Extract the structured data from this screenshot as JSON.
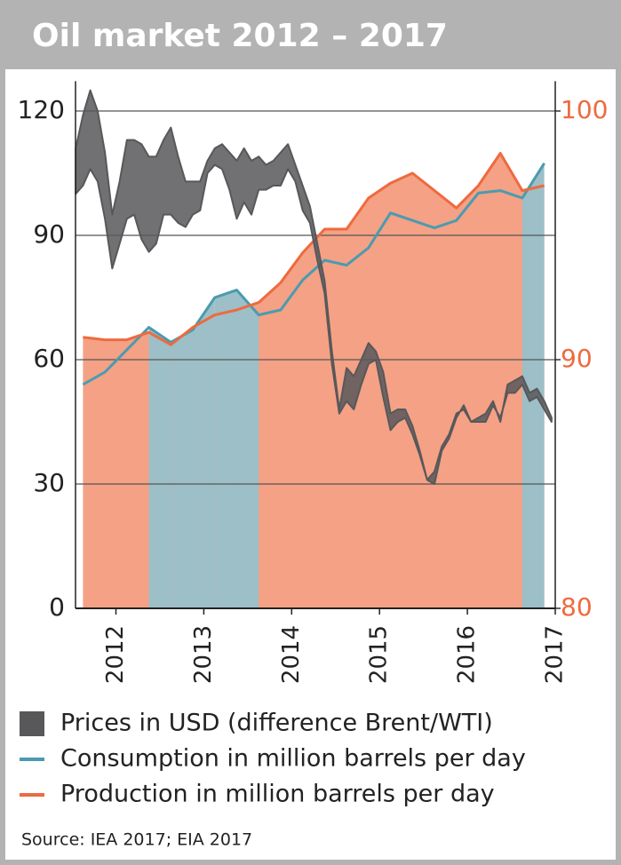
{
  "chart_data": {
    "type": "line",
    "title": "Oil market 2012 – 2017",
    "source": "Source: IEA 2017; EIA 2017",
    "xlim": [
      2012.04,
      2017.5
    ],
    "xticks": [
      {
        "value": 2012.5,
        "label": "2012"
      },
      {
        "value": 2013.5,
        "label": "2013"
      },
      {
        "value": 2014.5,
        "label": "2014"
      },
      {
        "value": 2015.5,
        "label": "2015"
      },
      {
        "value": 2016.5,
        "label": "2016"
      },
      {
        "value": 2017.5,
        "label": "2017"
      }
    ],
    "ylim": [
      0,
      127.2
    ],
    "yticks": [
      0,
      30,
      60,
      90,
      120
    ],
    "y2lim": [
      80,
      101.2
    ],
    "y2ticks": [
      80,
      90,
      100
    ],
    "y2color": "#ee6a3f",
    "grid": true,
    "series": [
      {
        "name": "Prices in USD (difference Brent/WTI)",
        "color": "#58585a",
        "x": [
          2012.042,
          2012.125,
          2012.208,
          2012.292,
          2012.375,
          2012.458,
          2012.542,
          2012.625,
          2012.708,
          2012.792,
          2012.875,
          2012.958,
          2013.042,
          2013.125,
          2013.208,
          2013.292,
          2013.375,
          2013.458,
          2013.542,
          2013.625,
          2013.708,
          2013.792,
          2013.875,
          2013.958,
          2014.042,
          2014.125,
          2014.208,
          2014.292,
          2014.375,
          2014.458,
          2014.542,
          2014.625,
          2014.708,
          2014.792,
          2014.875,
          2014.958,
          2015.042,
          2015.125,
          2015.208,
          2015.292,
          2015.375,
          2015.458,
          2015.542,
          2015.625,
          2015.708,
          2015.792,
          2015.875,
          2015.958,
          2016.042,
          2016.125,
          2016.208,
          2016.292,
          2016.375,
          2016.458,
          2016.542,
          2016.625,
          2016.708,
          2016.792,
          2016.875,
          2016.958,
          2017.042,
          2017.125,
          2017.208,
          2017.292,
          2017.375,
          2017.458
        ],
        "values": [
          111,
          119,
          125,
          120,
          110,
          95,
          103,
          113,
          113,
          112,
          109,
          109,
          113,
          116,
          109,
          103,
          103,
          103,
          108,
          111,
          112,
          110,
          108,
          111,
          108,
          109,
          107,
          108,
          110,
          112,
          107,
          102,
          97,
          88,
          79,
          62,
          48,
          58,
          56,
          60,
          64,
          62,
          57,
          47,
          48,
          48,
          44,
          38,
          31,
          33,
          39,
          42,
          47,
          48,
          45,
          46,
          47,
          50,
          45,
          54,
          55,
          56,
          52,
          53,
          50,
          46
        ],
        "low": [
          100,
          102,
          106,
          103,
          94,
          82,
          88,
          94,
          95,
          89,
          86,
          88,
          95,
          95,
          93,
          92,
          95,
          96,
          105,
          107,
          106,
          101,
          94,
          98,
          95,
          101,
          101,
          102,
          102,
          106,
          103,
          96,
          93,
          84,
          76,
          59,
          47,
          50,
          48,
          54,
          59,
          60,
          51,
          43,
          45,
          46,
          42,
          37,
          31,
          30,
          38,
          41,
          46,
          49,
          45,
          45,
          45,
          49,
          46,
          52,
          52,
          54,
          50,
          51,
          48,
          45
        ]
      },
      {
        "name": "Consumption in million barrels per day",
        "color": "#4a9bb0",
        "fill": "#9dbfc7",
        "axis": "y2",
        "x": [
          2012.125,
          2012.375,
          2012.625,
          2012.875,
          2013.125,
          2013.375,
          2013.625,
          2013.875,
          2014.125,
          2014.375,
          2014.625,
          2014.875,
          2015.125,
          2015.375,
          2015.625,
          2015.875,
          2016.125,
          2016.375,
          2016.625,
          2016.875,
          2017.125,
          2017.375
        ],
        "values": [
          89.0,
          89.5,
          90.4,
          91.3,
          90.7,
          91.2,
          92.5,
          92.8,
          91.8,
          92.0,
          93.2,
          94.0,
          93.8,
          94.5,
          95.9,
          95.6,
          95.3,
          95.6,
          96.7,
          96.8,
          96.5,
          97.9
        ]
      },
      {
        "name": "Production in million barrels per day",
        "color": "#ee6a3f",
        "fill": "#f4a185",
        "axis": "y2",
        "x": [
          2012.125,
          2012.375,
          2012.625,
          2012.875,
          2013.125,
          2013.375,
          2013.625,
          2013.875,
          2014.125,
          2014.375,
          2014.625,
          2014.875,
          2015.125,
          2015.375,
          2015.625,
          2015.875,
          2016.125,
          2016.375,
          2016.625,
          2016.875,
          2017.125,
          2017.375
        ],
        "values": [
          90.9,
          90.8,
          90.8,
          91.1,
          90.6,
          91.3,
          91.8,
          92.0,
          92.3,
          93.1,
          94.3,
          95.25,
          95.25,
          96.5,
          97.1,
          97.5,
          96.8,
          96.1,
          97.0,
          98.3,
          96.8,
          97.0
        ]
      }
    ]
  }
}
